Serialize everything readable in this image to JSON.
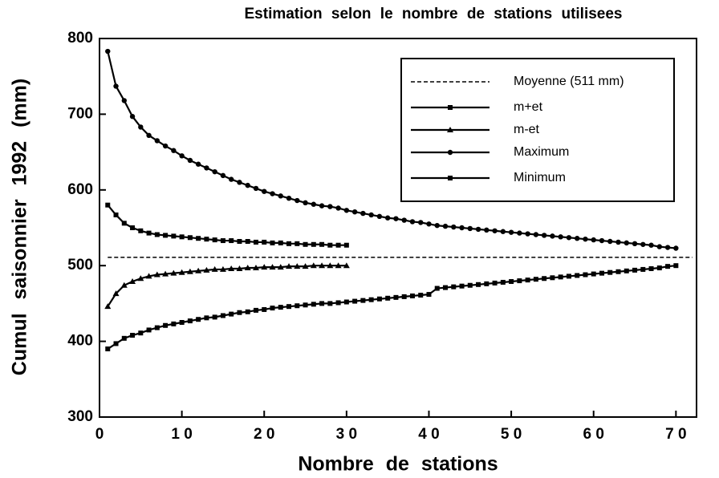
{
  "chart_data": {
    "type": "line",
    "title": "Estimation selon le nombre de stations utilisees",
    "x_label": "Nombre de stations",
    "y_label": "Cumul saisonnier 1992 (mm)",
    "xlim": [
      0,
      72.5
    ],
    "xticks": [
      0,
      {
        "value": 10,
        "label": "1 0"
      },
      {
        "value": 20,
        "label": "2 0"
      },
      {
        "value": 30,
        "label": "3 0"
      },
      {
        "value": 40,
        "label": "4 0"
      },
      {
        "value": 50,
        "label": "5 0"
      },
      {
        "value": 60,
        "label": "6 0"
      },
      {
        "value": 70,
        "label": "7 0"
      }
    ],
    "ylim": [
      300,
      800
    ],
    "yticks": [
      300,
      400,
      500,
      600,
      700,
      800
    ],
    "grid": false,
    "legend": "upper right",
    "series": [
      {
        "name": "Moyenne (511 mm)",
        "color": "#000000",
        "style": "dashed",
        "marker": "none",
        "x": [
          1,
          72
        ],
        "values": [
          511,
          511
        ]
      },
      {
        "name": "m+et",
        "color": "#000000",
        "style": "solid",
        "marker": "square",
        "x": [
          1,
          2,
          3,
          4,
          5,
          6,
          7,
          8,
          9,
          10,
          11,
          12,
          13,
          14,
          15,
          16,
          17,
          18,
          19,
          20,
          21,
          22,
          23,
          24,
          25,
          26,
          27,
          28,
          29,
          30
        ],
        "values": [
          580,
          567,
          556,
          550,
          546,
          543,
          541,
          540,
          539,
          538,
          537,
          536,
          535,
          534,
          533,
          533,
          532,
          532,
          531,
          531,
          530,
          530,
          529,
          529,
          528,
          528,
          528,
          527,
          527,
          527
        ]
      },
      {
        "name": "m-et",
        "color": "#000000",
        "style": "solid",
        "marker": "triangle",
        "x": [
          1,
          2,
          3,
          4,
          5,
          6,
          7,
          8,
          9,
          10,
          11,
          12,
          13,
          14,
          15,
          16,
          17,
          18,
          19,
          20,
          21,
          22,
          23,
          24,
          25,
          26,
          27,
          28,
          29,
          30
        ],
        "values": [
          446,
          463,
          474,
          479,
          483,
          486,
          488,
          489,
          490,
          491,
          492,
          493,
          494,
          495,
          495,
          496,
          496,
          497,
          497,
          498,
          498,
          498,
          499,
          499,
          499,
          500,
          500,
          500,
          500,
          500
        ]
      },
      {
        "name": "Maximum",
        "color": "#000000",
        "style": "solid",
        "marker": "circle",
        "x": [
          1,
          2,
          3,
          4,
          5,
          6,
          7,
          8,
          9,
          10,
          11,
          12,
          13,
          14,
          15,
          16,
          17,
          18,
          19,
          20,
          21,
          22,
          23,
          24,
          25,
          26,
          27,
          28,
          29,
          30,
          31,
          32,
          33,
          34,
          35,
          36,
          37,
          38,
          39,
          40,
          41,
          42,
          43,
          44,
          45,
          46,
          47,
          48,
          49,
          50,
          51,
          52,
          53,
          54,
          55,
          56,
          57,
          58,
          59,
          60,
          61,
          62,
          63,
          64,
          65,
          66,
          67,
          68,
          69,
          70
        ],
        "values": [
          783,
          737,
          718,
          697,
          683,
          672,
          665,
          658,
          652,
          645,
          639,
          634,
          629,
          624,
          619,
          614,
          610,
          606,
          602,
          598,
          595,
          592,
          589,
          586,
          583,
          581,
          579,
          578,
          576,
          573,
          571,
          569,
          567,
          565,
          563,
          562,
          560,
          558,
          557,
          555,
          553,
          552,
          551,
          550,
          549,
          548,
          547,
          546,
          545,
          544,
          543,
          542,
          541,
          540,
          539,
          538,
          537,
          536,
          535,
          534,
          533,
          532,
          531,
          530,
          529,
          528,
          527,
          525,
          524,
          523
        ]
      },
      {
        "name": "Minimum",
        "color": "#000000",
        "style": "solid",
        "marker": "square",
        "x": [
          1,
          2,
          3,
          4,
          5,
          6,
          7,
          8,
          9,
          10,
          11,
          12,
          13,
          14,
          15,
          16,
          17,
          18,
          19,
          20,
          21,
          22,
          23,
          24,
          25,
          26,
          27,
          28,
          29,
          30,
          31,
          32,
          33,
          34,
          35,
          36,
          37,
          38,
          39,
          40,
          41,
          42,
          43,
          44,
          45,
          46,
          47,
          48,
          49,
          50,
          51,
          52,
          53,
          54,
          55,
          56,
          57,
          58,
          59,
          60,
          61,
          62,
          63,
          64,
          65,
          66,
          67,
          68,
          69,
          70
        ],
        "values": [
          390,
          397,
          404,
          408,
          411,
          415,
          418,
          421,
          423,
          425,
          427,
          429,
          431,
          432,
          434,
          436,
          438,
          439,
          441,
          442,
          444,
          445,
          446,
          447,
          448,
          449,
          450,
          450,
          451,
          452,
          453,
          454,
          455,
          456,
          457,
          458,
          459,
          460,
          461,
          462,
          470,
          471,
          472,
          473,
          474,
          475,
          476,
          477,
          478,
          479,
          480,
          481,
          482,
          483,
          484,
          485,
          486,
          487,
          488,
          489,
          490,
          491,
          492,
          493,
          494,
          495,
          496,
          497,
          499,
          500
        ]
      }
    ]
  }
}
